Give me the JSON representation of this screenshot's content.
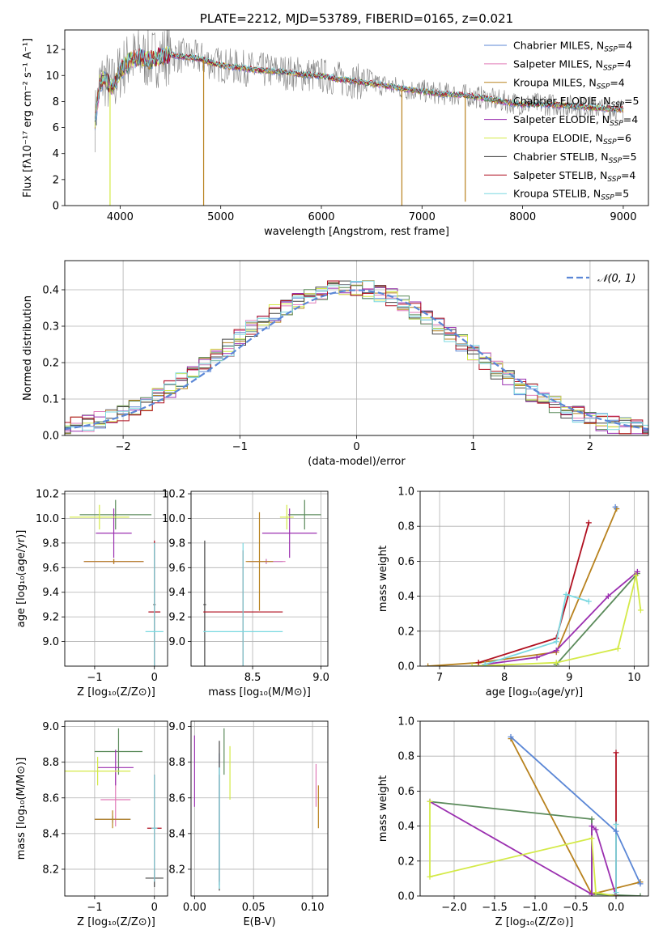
{
  "colors": {
    "chabrier_miles": "#5b87d6",
    "salpeter_miles": "#e07ab8",
    "kroupa_miles": "#b8821e",
    "chabrier_elodie": "#5a8a5a",
    "salpeter_elodie": "#9b30b0",
    "kroupa_elodie": "#d4ea48",
    "chabrier_stelib": "#444444",
    "salpeter_stelib": "#b01020",
    "kroupa_stelib": "#7ad8e0",
    "data_flux": "#808080",
    "normal_curve": "#5b87d6",
    "grid": "#b0b0b0"
  },
  "chart_data": [
    {
      "id": "spectrum",
      "type": "line",
      "title": "PLATE=2212, MJD=53789, FIBERID=0165, z=0.021",
      "xlabel": "wavelength [Angstrom, rest frame]",
      "ylabel": "Flux [fλ10⁻¹⁷ erg cm⁻² s⁻¹ A⁻¹]",
      "xlim": [
        3450,
        9250
      ],
      "ylim": [
        0,
        13.5
      ],
      "xticks": [
        4000,
        5000,
        6000,
        7000,
        8000,
        9000
      ],
      "yticks": [
        0,
        2,
        4,
        6,
        8,
        10,
        12
      ],
      "grid": false,
      "legend_position": "top-right",
      "legend": [
        {
          "series": "chabrier_miles",
          "text": "Chabrier MILES, N",
          "sub": "SSP",
          "suffix": "=4"
        },
        {
          "series": "salpeter_miles",
          "text": "Salpeter MILES, N",
          "sub": "SSP",
          "suffix": "=4"
        },
        {
          "series": "kroupa_miles",
          "text": "Kroupa MILES, N",
          "sub": "SSP",
          "suffix": "=4"
        },
        {
          "series": "chabrier_elodie",
          "text": "Chabrier ELODIE, N",
          "sub": "SSP",
          "suffix": "=5"
        },
        {
          "series": "salpeter_elodie",
          "text": "Salpeter ELODIE, N",
          "sub": "SSP",
          "suffix": "=4"
        },
        {
          "series": "kroupa_elodie",
          "text": "Kroupa ELODIE, N",
          "sub": "SSP",
          "suffix": "=6"
        },
        {
          "series": "chabrier_stelib",
          "text": "Chabrier STELIB, N",
          "sub": "SSP",
          "suffix": "=5"
        },
        {
          "series": "salpeter_stelib",
          "text": "Salpeter STELIB, N",
          "sub": "SSP",
          "suffix": "=4"
        },
        {
          "series": "kroupa_stelib",
          "text": "Kroupa STELIB, N",
          "sub": "SSP",
          "suffix": "=5"
        }
      ],
      "data_envelope": {
        "x": [
          3750,
          3800,
          3850,
          3900,
          3950,
          4000,
          4100,
          4200,
          4300,
          4400,
          4500,
          4600,
          4700,
          4800,
          4900,
          5000,
          5200,
          5400,
          5600,
          5800,
          6000,
          6200,
          6400,
          6600,
          6800,
          7000,
          7200,
          7400,
          7600,
          7800,
          8000,
          8200,
          8400,
          8600,
          8800,
          9000
        ],
        "y": [
          6.5,
          9.5,
          9.8,
          9.2,
          9.4,
          10.4,
          11.2,
          11.4,
          11.2,
          11.5,
          11.6,
          11.5,
          11.4,
          11.3,
          11.0,
          10.8,
          10.6,
          10.4,
          10.3,
          10.1,
          10.0,
          9.7,
          9.5,
          9.3,
          9.0,
          8.8,
          8.6,
          8.5,
          8.3,
          8.0,
          7.8,
          7.8,
          7.7,
          7.6,
          7.5,
          7.4
        ]
      },
      "model_spikes": [
        {
          "series": "kroupa_miles",
          "x": 4830,
          "y": 0.0
        },
        {
          "series": "kroupa_miles",
          "x": 6800,
          "y": 0.0
        },
        {
          "series": "kroupa_miles",
          "x": 7430,
          "y": 0.3
        },
        {
          "series": "kroupa_elodie",
          "x": 3900,
          "y": 0.0
        }
      ]
    },
    {
      "id": "residuals",
      "type": "line",
      "xlabel": "(data-model)/error",
      "ylabel": "Normed distribution",
      "xlim": [
        -2.5,
        2.5
      ],
      "ylim": [
        0,
        0.48
      ],
      "xticks": [
        -2,
        -1,
        0,
        1,
        2
      ],
      "yticks": [
        0.0,
        0.1,
        0.2,
        0.3,
        0.4
      ],
      "grid": true,
      "legend_position": "top-right",
      "normal_label": "𝒩(0, 1)"
    },
    {
      "id": "age_vs_Z",
      "type": "scatter",
      "xlabel": "Z [log₁₀(Z/Z⊙)]",
      "ylabel": "age  [log₁₀(age/yr)]",
      "xlim": [
        -1.5,
        0.22
      ],
      "ylim": [
        8.8,
        10.22
      ],
      "xticks": [
        -1,
        0
      ],
      "yticks": [
        9.0,
        9.2,
        9.4,
        9.6,
        9.8,
        10.0,
        10.2
      ],
      "grid": true,
      "points": [
        {
          "series": "chabrier_miles",
          "x": -0.68,
          "xerr": 0.5,
          "y": 9.65,
          "yerr": 0.02
        },
        {
          "series": "salpeter_miles",
          "x": -0.68,
          "xerr": 0.5,
          "y": 9.65,
          "yerr": 0.02
        },
        {
          "series": "kroupa_miles",
          "x": -0.68,
          "xerr": 0.5,
          "y": 9.65,
          "yerr": 0.02
        },
        {
          "series": "chabrier_elodie",
          "x": -0.65,
          "xerr": 0.6,
          "y": 10.03,
          "yerr": 0.12
        },
        {
          "series": "salpeter_elodie",
          "x": -0.68,
          "xerr": 0.3,
          "y": 9.88,
          "yerr": 0.2
        },
        {
          "series": "kroupa_elodie",
          "x": -0.92,
          "xerr": 0.5,
          "y": 10.01,
          "yerr": 0.1
        },
        {
          "series": "chabrier_stelib",
          "x": 0.0,
          "xerr": 0.02,
          "y": 9.3,
          "yerr": 0.5
        },
        {
          "series": "salpeter_stelib",
          "x": 0.0,
          "xerr": 0.1,
          "y": 9.24,
          "yerr": 0.58
        },
        {
          "series": "kroupa_stelib",
          "x": 0.0,
          "xerr": 0.15,
          "y": 9.08,
          "yerr": 0.72
        }
      ]
    },
    {
      "id": "age_vs_mass",
      "type": "scatter",
      "xlabel": "mass [log₁₀(M/M⊙)]",
      "ylabel": "",
      "xlim": [
        8.05,
        9.05
      ],
      "ylim": [
        8.8,
        10.22
      ],
      "xticks": [
        8.5,
        9.0
      ],
      "yticks": [
        9.0,
        9.2,
        9.4,
        9.6,
        9.8,
        10.0,
        10.2
      ],
      "grid": true,
      "points": [
        {
          "series": "chabrier_miles",
          "x": 8.6,
          "xerr": 0.12,
          "y": 9.65,
          "yerr": 0.02
        },
        {
          "series": "salpeter_miles",
          "x": 8.6,
          "xerr": 0.14,
          "y": 9.65,
          "yerr": 0.02
        },
        {
          "series": "kroupa_miles",
          "x": 8.55,
          "xerr": 0.1,
          "y": 9.65,
          "yerr": 0.4
        },
        {
          "series": "chabrier_elodie",
          "x": 8.88,
          "xerr": 0.12,
          "y": 10.03,
          "yerr": 0.12
        },
        {
          "series": "salpeter_elodie",
          "x": 8.77,
          "xerr": 0.2,
          "y": 9.88,
          "yerr": 0.2
        },
        {
          "series": "kroupa_elodie",
          "x": 8.75,
          "xerr": 0.05,
          "y": 10.01,
          "yerr": 0.1
        },
        {
          "series": "chabrier_stelib",
          "x": 8.15,
          "xerr": 0.01,
          "y": 9.3,
          "yerr": 0.52
        },
        {
          "series": "salpeter_stelib",
          "x": 8.43,
          "xerr": 0.29,
          "y": 9.24,
          "yerr": 0.5
        },
        {
          "series": "kroupa_stelib",
          "x": 8.43,
          "xerr": 0.29,
          "y": 9.08,
          "yerr": 0.72
        }
      ]
    },
    {
      "id": "massweight_vs_age",
      "type": "line",
      "xlabel": "age  [log₁₀(age/yr)]",
      "ylabel": "mass weight",
      "xlim": [
        6.7,
        10.22
      ],
      "ylim": [
        0,
        1.0
      ],
      "xticks": [
        7,
        8,
        9,
        10
      ],
      "yticks": [
        0.0,
        0.2,
        0.4,
        0.6,
        0.8,
        1.0
      ],
      "grid": true,
      "lines": [
        {
          "series": "kroupa_miles",
          "x": [
            6.82,
            7.6,
            8.8,
            9.73
          ],
          "y": [
            0.0,
            0.02,
            0.08,
            0.9
          ]
        },
        {
          "series": "salpeter_stelib",
          "x": [
            7.6,
            8.8,
            9.3
          ],
          "y": [
            0.02,
            0.16,
            0.82
          ]
        },
        {
          "series": "chabrier_elodie",
          "x": [
            8.8,
            10.05
          ],
          "y": [
            0.01,
            0.53
          ]
        },
        {
          "series": "salpeter_elodie",
          "x": [
            7.7,
            8.5,
            8.8,
            9.6,
            10.05
          ],
          "y": [
            0.01,
            0.05,
            0.09,
            0.4,
            0.54
          ]
        },
        {
          "series": "kroupa_elodie",
          "x": [
            7.5,
            8.8,
            9.75,
            10.03,
            10.1
          ],
          "y": [
            0.0,
            0.02,
            0.1,
            0.52,
            0.32
          ]
        },
        {
          "series": "kroupa_stelib",
          "x": [
            7.7,
            8.8,
            8.95,
            9.3
          ],
          "y": [
            0.01,
            0.14,
            0.41,
            0.37
          ]
        },
        {
          "series": "chabrier_miles",
          "x": [
            9.71
          ],
          "y": [
            0.91
          ]
        }
      ]
    },
    {
      "id": "mass_vs_Z",
      "type": "scatter",
      "xlabel": "Z [log₁₀(Z/Z⊙)]",
      "ylabel": "mass [log₁₀(M/M⊙)]",
      "xlim": [
        -1.5,
        0.22
      ],
      "ylim": [
        8.05,
        9.03
      ],
      "xticks": [
        -1,
        0
      ],
      "yticks": [
        8.2,
        8.4,
        8.6,
        8.8,
        9.0
      ],
      "grid": true,
      "points": [
        {
          "series": "chabrier_miles",
          "x": -0.7,
          "xerr": 0.3,
          "y": 8.48,
          "yerr": 0.02
        },
        {
          "series": "salpeter_miles",
          "x": -0.65,
          "xerr": 0.25,
          "y": 8.59,
          "yerr": 0.15
        },
        {
          "series": "kroupa_miles",
          "x": -0.7,
          "xerr": 0.3,
          "y": 8.48,
          "yerr": 0.05
        },
        {
          "series": "chabrier_elodie",
          "x": -0.6,
          "xerr": 0.4,
          "y": 8.86,
          "yerr": 0.13
        },
        {
          "series": "salpeter_elodie",
          "x": -0.65,
          "xerr": 0.3,
          "y": 8.77,
          "yerr": 0.1
        },
        {
          "series": "kroupa_elodie",
          "x": -0.95,
          "xerr": 0.55,
          "y": 8.75,
          "yerr": 0.08
        },
        {
          "series": "chabrier_stelib",
          "x": 0.0,
          "xerr": 0.15,
          "y": 8.15,
          "yerr": 0.05
        },
        {
          "series": "salpeter_stelib",
          "x": 0.0,
          "xerr": 0.12,
          "y": 8.43,
          "yerr": 0.3
        },
        {
          "series": "kroupa_stelib",
          "x": 0.0,
          "xerr": 0.05,
          "y": 8.43,
          "yerr": 0.3
        }
      ]
    },
    {
      "id": "mass_vs_ebv",
      "type": "scatter",
      "xlabel": "E(B-V)",
      "ylabel": "",
      "xlim": [
        -0.003,
        0.113
      ],
      "ylim": [
        8.05,
        9.03
      ],
      "xticks": [
        0.0,
        0.05,
        0.1
      ],
      "xtick_labels": [
        "0.00",
        "0.05",
        "0.10"
      ],
      "yticks": [
        8.2,
        8.4,
        8.6,
        8.8,
        9.0
      ],
      "grid": true,
      "points": [
        {
          "series": "chabrier_miles",
          "x": 0.021,
          "xerr": 0.0,
          "y": 8.48,
          "yerr": 0.37
        },
        {
          "series": "salpeter_miles",
          "x": 0.103,
          "xerr": 0.0,
          "y": 8.67,
          "yerr": 0.12
        },
        {
          "series": "kroupa_miles",
          "x": 0.105,
          "xerr": 0.0,
          "y": 8.55,
          "yerr": 0.12
        },
        {
          "series": "chabrier_elodie",
          "x": 0.025,
          "xerr": 0.0,
          "y": 8.86,
          "yerr": 0.13
        },
        {
          "series": "salpeter_elodie",
          "x": 0.0,
          "xerr": 0.0,
          "y": 8.75,
          "yerr": 0.2
        },
        {
          "series": "kroupa_elodie",
          "x": 0.03,
          "xerr": 0.0,
          "y": 8.74,
          "yerr": 0.15
        },
        {
          "series": "chabrier_stelib",
          "x": 0.021,
          "xerr": 0.0,
          "y": 8.5,
          "yerr": 0.42
        },
        {
          "series": "salpeter_stelib",
          "x": 0.021,
          "xerr": 0.0,
          "y": 8.43,
          "yerr": 0.3
        },
        {
          "series": "kroupa_stelib",
          "x": 0.021,
          "xerr": 0.0,
          "y": 8.43,
          "yerr": 0.34
        }
      ]
    },
    {
      "id": "massweight_vs_Z",
      "type": "line",
      "xlabel": "Z [log₁₀(Z/Z⊙)]",
      "ylabel": "mass weight",
      "xlim": [
        -2.42,
        0.4
      ],
      "ylim": [
        0,
        1.0
      ],
      "xticks": [
        -2.0,
        -1.5,
        -1.0,
        -0.5,
        0.0
      ],
      "yticks": [
        0.0,
        0.2,
        0.4,
        0.6,
        0.8,
        1.0
      ],
      "grid": true,
      "lines": [
        {
          "series": "kroupa_miles",
          "x": [
            -1.3,
            -0.3,
            0.3
          ],
          "y": [
            0.9,
            0.01,
            0.08
          ]
        },
        {
          "series": "chabrier_elodie",
          "x": [
            -2.3,
            -0.3,
            -0.3,
            0.3
          ],
          "y": [
            0.54,
            0.44,
            0.01,
            0.0
          ]
        },
        {
          "series": "salpeter_elodie",
          "x": [
            -2.3,
            -0.3,
            -0.3,
            -0.25,
            0.0
          ],
          "y": [
            0.54,
            0.01,
            0.4,
            0.38,
            0.0
          ]
        },
        {
          "series": "kroupa_elodie",
          "x": [
            -2.3,
            -2.3,
            -0.3,
            -0.25,
            0.0
          ],
          "y": [
            0.54,
            0.11,
            0.33,
            0.02,
            0.0
          ]
        },
        {
          "series": "salpeter_stelib",
          "x": [
            0.0,
            0.0
          ],
          "y": [
            0.0,
            0.82
          ]
        },
        {
          "series": "kroupa_stelib",
          "x": [
            0.0,
            0.0
          ],
          "y": [
            0.02,
            0.41
          ]
        },
        {
          "series": "chabrier_miles",
          "x": [
            -1.3,
            0.0,
            0.3
          ],
          "y": [
            0.91,
            0.37,
            0.07
          ]
        }
      ]
    }
  ]
}
